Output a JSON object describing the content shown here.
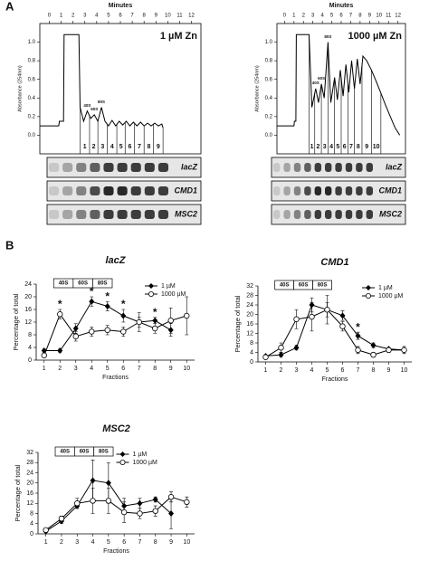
{
  "panel_labels": [
    "A",
    "B"
  ],
  "chart_data": [
    {
      "type": "profile",
      "xlabel": "Minutes",
      "ylabel": "Absorbance (254nm)",
      "annotation": "1 µM Zn",
      "x": [
        -0.8,
        0.8,
        0.85,
        1.2,
        1.25,
        2.5,
        2.6,
        2.9,
        3.2,
        3.5,
        3.8,
        4.1,
        4.4,
        4.7,
        5.0,
        5.3,
        5.6,
        5.9,
        6.2,
        6.5,
        6.8,
        7.1,
        7.4,
        7.7,
        8.0,
        8.3,
        8.6,
        8.9,
        9.2,
        9.5,
        9.6
      ],
      "values": [
        0.1,
        0.1,
        0.15,
        0.15,
        1.08,
        1.08,
        0.3,
        0.15,
        0.26,
        0.18,
        0.22,
        0.15,
        0.3,
        0.15,
        0.1,
        0.16,
        0.1,
        0.15,
        0.11,
        0.15,
        0.1,
        0.14,
        0.1,
        0.14,
        0.1,
        0.13,
        0.1,
        0.13,
        0.1,
        0.12,
        0.08
      ],
      "xlim": [
        -0.8,
        12.8
      ],
      "xticks": [
        0,
        1,
        2,
        3,
        4,
        5,
        6,
        7,
        8,
        9,
        10,
        11,
        12
      ],
      "ylim": [
        -0.2,
        1.2
      ],
      "yticks": [
        {
          "value": 0,
          "label": "0.0"
        },
        0.2,
        0.4,
        0.6,
        0.8,
        {
          "value": 1,
          "label": "1.0"
        }
      ],
      "peak_labels": [
        "40S",
        "60S",
        "80S"
      ],
      "fraction_edges": [
        2.6,
        3.4,
        4.1,
        4.9,
        5.7,
        6.4,
        7.2,
        8.0,
        8.8,
        9.6
      ],
      "fraction_labels": [
        "1",
        "2",
        "3",
        "4",
        "5",
        "6",
        "7",
        "8",
        "9"
      ],
      "blots": [
        "lacZ",
        "CMD1",
        "MSC2"
      ]
    },
    {
      "type": "profile",
      "xlabel": "Minutes",
      "ylabel": "Absorbance (254nm)",
      "annotation": "1000 µM Zn",
      "x": [
        -0.8,
        1.0,
        1.05,
        1.2,
        1.25,
        2.6,
        2.9,
        3.3,
        3.6,
        3.9,
        4.2,
        4.6,
        4.9,
        5.3,
        5.6,
        5.9,
        6.2,
        6.5,
        6.8,
        7.1,
        7.4,
        7.7,
        8.0,
        8.3,
        8.7,
        9.2,
        9.7,
        10.2,
        10.7,
        11.2,
        11.7,
        12.2
      ],
      "values": [
        0.1,
        0.1,
        0.15,
        0.15,
        1.08,
        1.08,
        0.3,
        0.5,
        0.35,
        0.55,
        0.4,
        1.0,
        0.35,
        0.62,
        0.38,
        0.7,
        0.42,
        0.76,
        0.46,
        0.8,
        0.5,
        0.82,
        0.55,
        0.85,
        0.8,
        0.7,
        0.58,
        0.45,
        0.32,
        0.2,
        0.08,
        0.0
      ],
      "xlim": [
        -0.8,
        12.8
      ],
      "xticks": [
        0,
        1,
        2,
        3,
        4,
        5,
        6,
        7,
        8,
        9,
        10,
        11,
        12
      ],
      "ylim": [
        -0.2,
        1.2
      ],
      "yticks": [
        {
          "value": 0,
          "label": "0.0"
        },
        0.2,
        0.4,
        0.6,
        0.8,
        {
          "value": 1,
          "label": "1.0"
        }
      ],
      "peak_labels": [
        "40S",
        "60S",
        "80S"
      ],
      "fraction_edges": [
        2.6,
        3.2,
        3.9,
        4.6,
        5.3,
        6.0,
        6.7,
        7.4,
        8.2,
        9.2,
        10.2
      ],
      "fraction_labels": [
        "1",
        "2",
        "3",
        "4",
        "5",
        "6",
        "7",
        "8",
        "9",
        "10"
      ],
      "blots": [
        "lacZ",
        "CMD1",
        "MSC2"
      ]
    },
    {
      "type": "line",
      "title": "lacZ",
      "xlabel": "Fractions",
      "ylabel": "Percentage of total",
      "x": [
        1,
        2,
        3,
        4,
        5,
        6,
        7,
        8,
        9,
        10
      ],
      "xlim": [
        0.5,
        10.5
      ],
      "xticks": [
        1,
        2,
        3,
        4,
        5,
        6,
        7,
        8,
        9,
        10
      ],
      "ylim": [
        0,
        24
      ],
      "yticks": [
        0,
        4,
        8,
        12,
        16,
        20,
        24
      ],
      "legend": "upper right",
      "ribosome_labels": [
        "40S",
        "60S",
        "80S"
      ],
      "significance": {
        "label": "*",
        "x": [
          2,
          4,
          5,
          6,
          8
        ]
      },
      "series": [
        {
          "name": "1 µM",
          "color": "#000000",
          "marker": "diamond",
          "values": [
            3,
            3,
            10,
            18.5,
            17,
            14,
            12,
            12.5,
            9.5,
            null
          ],
          "errors": [
            0.5,
            0.5,
            1.5,
            1.5,
            1.5,
            2,
            1.5,
            1,
            2,
            null
          ]
        },
        {
          "name": "1000 µM",
          "color": "#000000",
          "marker": "circle",
          "values": [
            1.5,
            14.5,
            7.5,
            9,
            9.5,
            9,
            12,
            10,
            12.5,
            14
          ],
          "errors": [
            0.5,
            1.5,
            1.5,
            1.5,
            1.5,
            1.5,
            3,
            1.5,
            4,
            6
          ]
        }
      ]
    },
    {
      "type": "line",
      "title": "CMD1",
      "xlabel": "Fractions",
      "ylabel": "Percentage of total",
      "x": [
        1,
        2,
        3,
        4,
        5,
        6,
        7,
        8,
        9,
        10
      ],
      "xlim": [
        0.5,
        10.5
      ],
      "xticks": [
        1,
        2,
        3,
        4,
        5,
        6,
        7,
        8,
        9,
        10
      ],
      "ylim": [
        0,
        32
      ],
      "yticks": [
        0,
        4,
        8,
        12,
        16,
        20,
        24,
        28,
        32
      ],
      "legend": "upper right",
      "ribosome_labels": [
        "40S",
        "60S",
        "80S"
      ],
      "significance": {
        "label": "*",
        "x": [
          7
        ]
      },
      "series": [
        {
          "name": "1 µM",
          "color": "#000000",
          "marker": "diamond",
          "values": [
            2.5,
            3,
            6,
            24,
            22,
            19.5,
            11,
            7,
            5.5,
            5
          ],
          "errors": [
            0.5,
            1,
            1,
            3,
            3,
            2,
            1.5,
            1,
            0.5,
            0.5
          ]
        },
        {
          "name": "1000 µM",
          "color": "#000000",
          "marker": "circle",
          "values": [
            2,
            6,
            18,
            19,
            22,
            15,
            5,
            3,
            5,
            5
          ],
          "errors": [
            0.5,
            2,
            4,
            6,
            6,
            2,
            1.5,
            1,
            1,
            1.5
          ]
        }
      ]
    },
    {
      "type": "line",
      "title": "MSC2",
      "xlabel": "Fractions",
      "ylabel": "Percentage of total",
      "x": [
        1,
        2,
        3,
        4,
        5,
        6,
        7,
        8,
        9,
        10
      ],
      "xlim": [
        0.5,
        10.5
      ],
      "xticks": [
        1,
        2,
        3,
        4,
        5,
        6,
        7,
        8,
        9,
        10
      ],
      "ylim": [
        0,
        32
      ],
      "yticks": [
        0,
        4,
        8,
        12,
        16,
        20,
        24,
        28,
        32
      ],
      "legend": "upper center",
      "ribosome_labels": [
        "40S",
        "60S",
        "80S"
      ],
      "series": [
        {
          "name": "1 µM",
          "color": "#000000",
          "marker": "diamond",
          "values": [
            1,
            5,
            11,
            21,
            20,
            11,
            12,
            13.5,
            8,
            null
          ],
          "errors": [
            0.5,
            1,
            1,
            8,
            8,
            3,
            2,
            1,
            6,
            null
          ]
        },
        {
          "name": "1000 µM",
          "color": "#000000",
          "marker": "circle",
          "values": [
            1.5,
            6,
            12,
            13,
            13,
            8.5,
            8,
            9,
            14.5,
            12.5
          ],
          "errors": [
            0.5,
            1,
            2,
            5,
            5,
            4,
            2,
            2,
            2,
            2
          ]
        }
      ]
    }
  ]
}
